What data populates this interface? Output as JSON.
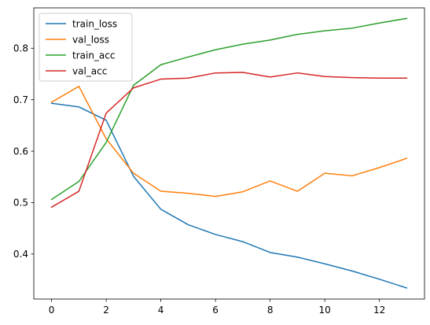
{
  "chart_data": {
    "type": "line",
    "title": "",
    "xlabel": "",
    "ylabel": "",
    "x": [
      0,
      1,
      2,
      3,
      4,
      5,
      6,
      7,
      8,
      9,
      10,
      11,
      12,
      13
    ],
    "xlim": [
      -0.65,
      13.65
    ],
    "ylim": [
      0.3125,
      0.8785
    ],
    "x_ticks": [
      0,
      2,
      4,
      6,
      8,
      10,
      12
    ],
    "y_ticks": [
      0.4,
      0.5,
      0.6,
      0.7,
      0.8
    ],
    "x_tick_labels": [
      "0",
      "2",
      "4",
      "6",
      "8",
      "10",
      "12"
    ],
    "y_tick_labels": [
      "0.4",
      "0.5",
      "0.6",
      "0.7",
      "0.8"
    ],
    "grid": false,
    "legend_position": "top-left",
    "series": [
      {
        "name": "train_loss",
        "color": "#1f77b4",
        "values": [
          0.693,
          0.686,
          0.66,
          0.551,
          0.487,
          0.457,
          0.438,
          0.424,
          0.403,
          0.394,
          0.381,
          0.367,
          0.351,
          0.334
        ]
      },
      {
        "name": "val_loss",
        "color": "#ff7f0e",
        "values": [
          0.695,
          0.726,
          0.624,
          0.557,
          0.522,
          0.518,
          0.512,
          0.521,
          0.542,
          0.522,
          0.557,
          0.552,
          0.568,
          0.586
        ]
      },
      {
        "name": "train_acc",
        "color": "#2ca02c",
        "values": [
          0.506,
          0.541,
          0.617,
          0.728,
          0.768,
          0.783,
          0.797,
          0.808,
          0.816,
          0.827,
          0.834,
          0.839,
          0.849,
          0.858
        ]
      },
      {
        "name": "val_acc",
        "color": "#d62728",
        "values": [
          0.491,
          0.522,
          0.674,
          0.723,
          0.74,
          0.742,
          0.752,
          0.753,
          0.744,
          0.752,
          0.745,
          0.743,
          0.742,
          0.742
        ]
      }
    ]
  }
}
